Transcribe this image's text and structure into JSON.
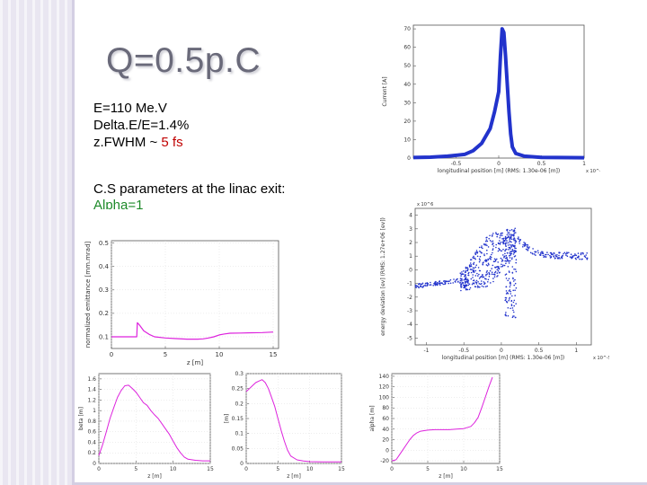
{
  "slide": {
    "title": "Q=0.5p.C",
    "params": [
      {
        "text": "E=110 Me.V"
      },
      {
        "text": "Delta.E/E=1.4%"
      },
      {
        "prefix": "z.FWHM ~ ",
        "highlight": "5 fs",
        "highlight_color": "#c00000"
      }
    ],
    "cs_title": "C.S parameters at the linac exit:",
    "cs_alpha": "Alpha=1",
    "colors": {
      "accent_band": "#e9e6f1",
      "title": "#6a6a7a",
      "curve_magenta": "#dd22dd",
      "curve_blue": "#2233cc"
    }
  },
  "chart_data": [
    {
      "type": "line",
      "id": "current-profile",
      "ylabel": "Current [A]",
      "xlabel": "longitudinal position [m] (RMS: 1.30e-06 [m])",
      "x_tick_labels": [
        "-0.5",
        "0",
        "0.5",
        "1"
      ],
      "y_tick_labels": [
        "0",
        "10",
        "20",
        "30",
        "40",
        "50",
        "60",
        "70"
      ],
      "x_multiplier": "x 10^-5",
      "xlim": [
        -1.0,
        1.0
      ],
      "ylim": [
        0,
        72
      ],
      "series": [
        {
          "values": [
            [
              -1.0,
              0.3
            ],
            [
              -0.8,
              0.5
            ],
            [
              -0.6,
              1.0
            ],
            [
              -0.4,
              2.0
            ],
            [
              -0.3,
              4.0
            ],
            [
              -0.2,
              8.0
            ],
            [
              -0.1,
              16.0
            ],
            [
              -0.05,
              25.0
            ],
            [
              0.0,
              36.0
            ],
            [
              0.02,
              55.0
            ],
            [
              0.04,
              70.0
            ],
            [
              0.06,
              68.0
            ],
            [
              0.08,
              55.0
            ],
            [
              0.1,
              40.0
            ],
            [
              0.12,
              25.0
            ],
            [
              0.14,
              13.0
            ],
            [
              0.16,
              6.0
            ],
            [
              0.2,
              2.5
            ],
            [
              0.3,
              1.0
            ],
            [
              0.5,
              0.4
            ],
            [
              1.0,
              0.2
            ]
          ]
        }
      ],
      "color": "#2233cc"
    },
    {
      "type": "scatter",
      "id": "energy-phase-space",
      "ylabel": "energy deviation [ev] (RMS: 1.27e+06 [ev])",
      "xlabel": "longitudinal position [m] (RMS: 1.30e-06 [m])",
      "x_tick_labels": [
        "-1",
        "-0.5",
        "0",
        "0.5",
        "1"
      ],
      "y_tick_labels": [
        "-5",
        "-4",
        "-3",
        "-2",
        "-1",
        "0",
        "1",
        "2",
        "3",
        "4"
      ],
      "y_multiplier": "x 10^6",
      "x_multiplier": "x 10^-5",
      "xlim": [
        -1.15,
        1.2
      ],
      "ylim": [
        -5.5,
        4.5
      ],
      "color": "#2233cc"
    },
    {
      "type": "line",
      "id": "emittance-vs-z",
      "ylabel": "normalized emittance [mm.mrad]",
      "xlabel": "z [m]",
      "x_tick_labels": [
        "0",
        "5",
        "10",
        "15"
      ],
      "y_tick_labels": [
        "0.1",
        "0.2",
        "0.3",
        "0.4",
        "0.5"
      ],
      "xlim": [
        0,
        15.5
      ],
      "ylim": [
        0.05,
        0.51
      ],
      "series": [
        {
          "values": [
            [
              0,
              0.1
            ],
            [
              2.0,
              0.1
            ],
            [
              2.35,
              0.1
            ],
            [
              2.4,
              0.16
            ],
            [
              2.6,
              0.15
            ],
            [
              3.0,
              0.125
            ],
            [
              3.5,
              0.11
            ],
            [
              4.0,
              0.1
            ],
            [
              5.0,
              0.095
            ],
            [
              6.0,
              0.092
            ],
            [
              7.0,
              0.09
            ],
            [
              8.0,
              0.09
            ],
            [
              8.5,
              0.091
            ],
            [
              9.0,
              0.095
            ],
            [
              9.5,
              0.1
            ],
            [
              10.0,
              0.108
            ],
            [
              10.5,
              0.112
            ],
            [
              11.0,
              0.115
            ],
            [
              12.0,
              0.116
            ],
            [
              13.0,
              0.117
            ],
            [
              14.0,
              0.118
            ],
            [
              15.0,
              0.12
            ]
          ]
        }
      ],
      "color": "#dd22dd"
    },
    {
      "type": "line",
      "id": "beta-vs-z",
      "ylabel": "beta [m]",
      "xlabel": "z [m]",
      "x_tick_labels": [
        "0",
        "5",
        "10",
        "15"
      ],
      "y_tick_labels": [
        "0",
        "0.2",
        "0.4",
        "0.6",
        "0.8",
        "1",
        "1.2",
        "1.4",
        "1.6"
      ],
      "xlim": [
        0,
        15
      ],
      "ylim": [
        0,
        1.7
      ],
      "series": [
        {
          "values": [
            [
              0,
              0.15
            ],
            [
              0.5,
              0.35
            ],
            [
              1.0,
              0.6
            ],
            [
              1.5,
              0.85
            ],
            [
              2.0,
              1.05
            ],
            [
              2.5,
              1.25
            ],
            [
              3.0,
              1.38
            ],
            [
              3.5,
              1.47
            ],
            [
              4.0,
              1.48
            ],
            [
              4.5,
              1.42
            ],
            [
              5.0,
              1.35
            ],
            [
              5.5,
              1.25
            ],
            [
              6.0,
              1.15
            ],
            [
              6.5,
              1.1
            ],
            [
              7.0,
              1.0
            ],
            [
              7.5,
              0.92
            ],
            [
              8.0,
              0.85
            ],
            [
              8.5,
              0.75
            ],
            [
              9.0,
              0.65
            ],
            [
              9.5,
              0.55
            ],
            [
              10.0,
              0.42
            ],
            [
              10.5,
              0.3
            ],
            [
              11.0,
              0.2
            ],
            [
              11.5,
              0.12
            ],
            [
              12.0,
              0.08
            ],
            [
              13.0,
              0.06
            ],
            [
              14.0,
              0.05
            ],
            [
              15.0,
              0.05
            ]
          ]
        }
      ],
      "color": "#dd22dd"
    },
    {
      "type": "line",
      "id": "plot-vs-z-2",
      "ylabel": "[m]",
      "xlabel": "z [m]",
      "x_tick_labels": [
        "0",
        "5",
        "10",
        "15"
      ],
      "y_tick_labels": [
        "0",
        "0.05",
        "0.1",
        "0.15",
        "0.2",
        "0.25",
        "0.3"
      ],
      "xlim": [
        0,
        15
      ],
      "ylim": [
        0,
        0.3
      ],
      "series": [
        {
          "values": [
            [
              0,
              0.24
            ],
            [
              0.5,
              0.25
            ],
            [
              1.0,
              0.26
            ],
            [
              1.5,
              0.27
            ],
            [
              2.0,
              0.275
            ],
            [
              2.5,
              0.28
            ],
            [
              3.0,
              0.27
            ],
            [
              3.5,
              0.25
            ],
            [
              4.0,
              0.22
            ],
            [
              4.5,
              0.19
            ],
            [
              5.0,
              0.15
            ],
            [
              5.5,
              0.11
            ],
            [
              6.0,
              0.075
            ],
            [
              6.5,
              0.045
            ],
            [
              7.0,
              0.025
            ],
            [
              8.0,
              0.012
            ],
            [
              9.0,
              0.008
            ],
            [
              10.0,
              0.006
            ],
            [
              12.0,
              0.005
            ],
            [
              15.0,
              0.005
            ]
          ]
        }
      ],
      "color": "#dd22dd"
    },
    {
      "type": "line",
      "id": "alpha-vs-z",
      "ylabel": "alpha [m]",
      "xlabel": "z [m]",
      "x_tick_labels": [
        "0",
        "5",
        "10",
        "15"
      ],
      "y_tick_labels": [
        "-20",
        "0",
        "20",
        "40",
        "60",
        "80",
        "100",
        "120",
        "140"
      ],
      "xlim": [
        0,
        15
      ],
      "ylim": [
        -25,
        145
      ],
      "series": [
        {
          "values": [
            [
              0,
              -20
            ],
            [
              0.6,
              -18
            ],
            [
              1.0,
              -10
            ],
            [
              1.5,
              0
            ],
            [
              2.0,
              10
            ],
            [
              2.5,
              20
            ],
            [
              3.0,
              28
            ],
            [
              3.5,
              33
            ],
            [
              4.0,
              36
            ],
            [
              5.0,
              38
            ],
            [
              6.0,
              39
            ],
            [
              7.0,
              39
            ],
            [
              8.0,
              39
            ],
            [
              9.0,
              40
            ],
            [
              10.0,
              41
            ],
            [
              11.0,
              45
            ],
            [
              11.5,
              52
            ],
            [
              12.0,
              62
            ],
            [
              12.5,
              80
            ],
            [
              13.0,
              100
            ],
            [
              13.5,
              120
            ],
            [
              14.0,
              138
            ]
          ]
        }
      ],
      "color": "#dd22dd"
    }
  ]
}
